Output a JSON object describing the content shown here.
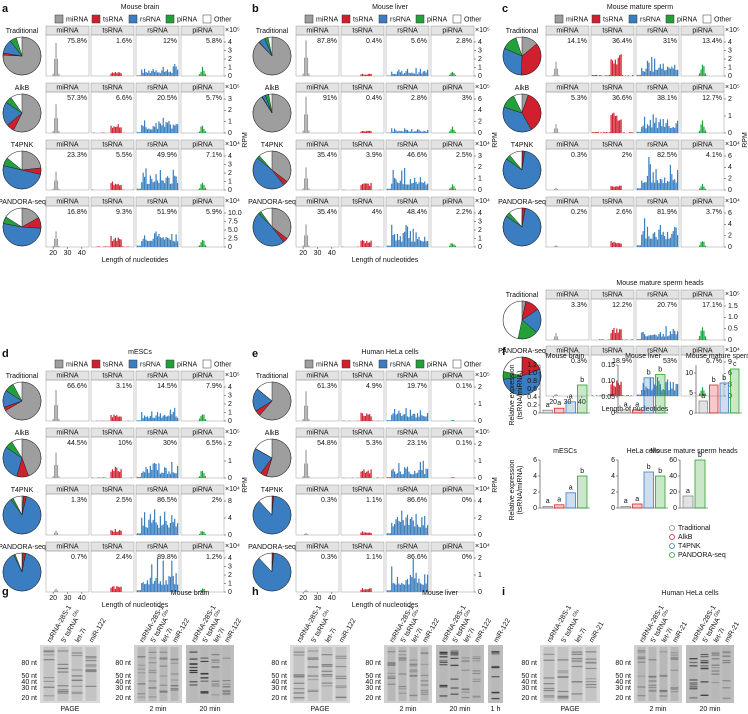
{
  "legend": [
    "miRNA",
    "tsRNA",
    "rsRNA",
    "piRNA",
    "Other"
  ],
  "x_ticks": [
    "20",
    "30",
    "40"
  ],
  "x_label": "Length of nucleotides",
  "y_label": "RPM",
  "panels": [
    {
      "letter": "a",
      "title": "Mouse brain",
      "rows": [
        {
          "label": "Traditional",
          "pcts": [
            "75.8%",
            "1.6%",
            "12%",
            "5.8%"
          ],
          "scale": "×10⁵",
          "ticks": [
            "0",
            "1",
            "2",
            "3",
            "4"
          ]
        },
        {
          "label": "AlkB",
          "pcts": [
            "57.3%",
            "6.6%",
            "20.5%",
            "5.7%"
          ],
          "scale": "×10⁵",
          "ticks": [
            "0",
            "1",
            "2",
            "3"
          ]
        },
        {
          "label": "T4PNK",
          "pcts": [
            "23.3%",
            "5.5%",
            "49.9%",
            "7.1%"
          ],
          "scale": "×10⁴",
          "ticks": [
            "0",
            "1",
            "2",
            "3",
            "4"
          ]
        },
        {
          "label": "PANDORA-seq",
          "pcts": [
            "16.8%",
            "9.3%",
            "51.9%",
            "5.9%"
          ],
          "scale": "×10⁴",
          "ticks": [
            "0",
            "2.5",
            "5.0",
            "7.5",
            "10.0"
          ]
        }
      ]
    },
    {
      "letter": "b",
      "title": "Mouse liver",
      "rows": [
        {
          "label": "Traditional",
          "pcts": [
            "87.8%",
            "0.4%",
            "5.6%",
            "2.8%"
          ],
          "scale": "×10⁵",
          "ticks": [
            "0",
            "1",
            "2",
            "3",
            "4"
          ]
        },
        {
          "label": "AlkB",
          "pcts": [
            "91%",
            "0.4%",
            "2.8%",
            "3%"
          ],
          "scale": "×10⁵",
          "ticks": [
            "0",
            "2",
            "4",
            "6"
          ]
        },
        {
          "label": "T4PNK",
          "pcts": [
            "35.4%",
            "3.9%",
            "46.6%",
            "2.5%"
          ],
          "scale": "×10⁴",
          "ticks": [
            "0",
            "1",
            "2",
            "3"
          ]
        },
        {
          "label": "PANDORA-seq",
          "pcts": [
            "35.4%",
            "4%",
            "48.4%",
            "2.2%"
          ],
          "scale": "×10⁴",
          "ticks": [
            "0",
            "1",
            "2",
            "3",
            "4"
          ]
        }
      ]
    },
    {
      "letter": "c",
      "title": "Mouse mature sperm",
      "subtitle": "Mouse mature sperm heads",
      "rows": [
        {
          "label": "Traditional",
          "pcts": [
            "14.1%",
            "36.4%",
            "31%",
            "13.4%"
          ],
          "scale": "×10⁵",
          "ticks": [
            "0",
            "1",
            "2",
            "3",
            "4"
          ]
        },
        {
          "label": "AlkB",
          "pcts": [
            "5.3%",
            "36.6%",
            "38.1%",
            "12.7%"
          ],
          "scale": "×10⁵",
          "ticks": [
            "0",
            "1",
            "2"
          ]
        },
        {
          "label": "T4PNK",
          "pcts": [
            "0.3%",
            "2%",
            "82.5%",
            "4.1%"
          ],
          "scale": "×10⁴",
          "ticks": [
            "0",
            "2",
            "4",
            "6"
          ]
        },
        {
          "label": "PANDORA-seq",
          "pcts": [
            "0.2%",
            "2.6%",
            "81.9%",
            "3.7%"
          ],
          "scale": "×10⁴",
          "ticks": [
            "0",
            "2",
            "4",
            "6"
          ]
        },
        {
          "label": "Traditional",
          "pcts": [
            "3.3%",
            "12.2%",
            "20.7%",
            "17.1%"
          ],
          "scale": "×10⁵",
          "ticks": [
            "0",
            "0.5",
            "1.0",
            "1.5"
          ]
        },
        {
          "label": "PANDORA-seq",
          "pcts": [
            "0.3%",
            "18.9%",
            "53%",
            "6.7%"
          ],
          "scale": "×10⁴",
          "ticks": [
            "0",
            "3",
            "6",
            "9"
          ]
        }
      ]
    },
    {
      "letter": "d",
      "title": "mESCs",
      "rows": [
        {
          "label": "Traditional",
          "pcts": [
            "66.6%",
            "3.1%",
            "14.5%",
            "7.9%"
          ],
          "scale": "×10⁵",
          "ticks": [
            "0",
            "1",
            "2",
            "3",
            "4"
          ]
        },
        {
          "label": "AlkB",
          "pcts": [
            "44.5%",
            "10%",
            "30%",
            "6.5%"
          ],
          "scale": "×10⁵",
          "ticks": [
            "0",
            "1",
            "2"
          ]
        },
        {
          "label": "T4PNK",
          "pcts": [
            "1.3%",
            "2.5%",
            "86.5%",
            "2%"
          ],
          "scale": "×10⁴",
          "ticks": [
            "0",
            "4",
            "8"
          ]
        },
        {
          "label": "PANDORA-seq",
          "pcts": [
            "0.7%",
            "2.4%",
            "89.8%",
            "1.2%"
          ],
          "scale": "×10⁴",
          "ticks": [
            "0",
            "1",
            "2",
            "3",
            "4"
          ]
        }
      ]
    },
    {
      "letter": "e",
      "title": "Human HeLa cells",
      "rows": [
        {
          "label": "Traditional",
          "pcts": [
            "61.3%",
            "4.9%",
            "19.7%",
            "0.1%"
          ],
          "scale": "×10⁵",
          "ticks": [
            "0",
            "1",
            "2"
          ]
        },
        {
          "label": "AlkB",
          "pcts": [
            "54.8%",
            "5.3%",
            "23.1%",
            "0.1%"
          ],
          "scale": "×10⁵",
          "ticks": [
            "0",
            "1",
            "2"
          ]
        },
        {
          "label": "T4PNK",
          "pcts": [
            "0.3%",
            "1.1%",
            "86.6%",
            "0%"
          ],
          "scale": "×10⁴",
          "ticks": [
            "0",
            "2",
            "4"
          ]
        },
        {
          "label": "PANDORA-seq",
          "pcts": [
            "0.3%",
            "1.1%",
            "86.6%",
            "0%"
          ],
          "scale": "×10⁴",
          "ticks": [
            "0",
            "1",
            "2"
          ]
        }
      ]
    }
  ],
  "panel_f": {
    "letter": "f",
    "y_label": [
      "Relative expression",
      "(tsRNA/miRNA)"
    ],
    "legend": [
      "Traditional",
      "AlkB",
      "T4PNK",
      "PANDORA-seq"
    ],
    "colors": [
      "#8c8c8c",
      "#d62728",
      "#3a7dc0",
      "#2ca02c"
    ],
    "charts": [
      {
        "title": "Mouse brain",
        "ylim": [
          0,
          1.2
        ],
        "yticks": [
          0,
          0.2,
          0.4,
          0.6,
          0.8,
          {
            "value": 1,
            "label": "1.0"
          },
          1.2
        ],
        "values": [
          0.07,
          0.12,
          0.28,
          0.7
        ],
        "letters": [
          "a",
          "a",
          "a",
          "b"
        ]
      },
      {
        "title": "Mouse liver",
        "ylim": [
          0,
          0.15
        ],
        "yticks": [
          0,
          0.05,
          {
            "value": 0.1,
            "label": "0.10"
          },
          0.15
        ],
        "values": [
          0.01,
          0.01,
          0.11,
          0.12
        ],
        "letters": [
          "a",
          "a",
          "b",
          "b"
        ]
      },
      {
        "title": "Mouse mature sperm",
        "ylim": [
          0,
          12
        ],
        "yticks": [
          0,
          5,
          10
        ],
        "values": [
          3,
          7,
          7.5,
          11
        ],
        "letters": [
          "a",
          "b",
          "b",
          "c"
        ]
      },
      {
        "title": "mESCs",
        "ylim": [
          0,
          6
        ],
        "yticks": [
          0,
          2,
          4,
          6
        ],
        "values": [
          0.2,
          0.4,
          1.9,
          4
        ],
        "letters": [
          "a",
          "a",
          "a",
          "b"
        ]
      },
      {
        "title": "HeLa cells",
        "ylim": [
          0,
          6
        ],
        "yticks": [
          0,
          2,
          4,
          6
        ],
        "values": [
          0.2,
          0.5,
          4.5,
          4
        ],
        "letters": [
          "a",
          "a",
          "b",
          "b"
        ]
      },
      {
        "title": "Mouse mature sperm heads",
        "ylim": [
          0,
          60
        ],
        "yticks": [
          0,
          20,
          40,
          60
        ],
        "values": [
          15,
          null,
          null,
          60
        ],
        "letters": [
          "a",
          null,
          null,
          "b"
        ]
      }
    ]
  },
  "gels": [
    {
      "letter": "g",
      "title": "Mouse brain",
      "markers": [
        "80 nt",
        "50 nt",
        "40 nt",
        "30 nt",
        "20 nt"
      ],
      "blots": [
        {
          "caption": "PAGE",
          "lanes": [
            "rsRNA-28S-1",
            [
              "5′ tsRNA",
              "Glu"
            ],
            "let-7i",
            "miR-122"
          ]
        },
        {
          "caption": "2 min",
          "lanes": [
            "rsRNA-28S-1",
            [
              "5′ tsRNA",
              "Glu"
            ],
            "let-7i",
            "miR-122"
          ]
        },
        {
          "caption": "20 min",
          "lanes": [
            "rsRNA-28S-1",
            [
              "5′ tsRNA",
              "Glu"
            ],
            "let-7i",
            "miR-122"
          ]
        }
      ]
    },
    {
      "letter": "h",
      "title": "Mouse liver",
      "markers": [
        "80 nt",
        "50 nt",
        "40 nt",
        "30 nt",
        "20 nt"
      ],
      "blots": [
        {
          "caption": "PAGE",
          "lanes": [
            "rsRNA-28S-1",
            [
              "5′ tsRNA",
              "Glu"
            ],
            "let-7i",
            "miR-122"
          ]
        },
        {
          "caption": "2 min",
          "lanes": [
            "rsRNA-28S-1",
            [
              "5′ tsRNA",
              "Glu"
            ],
            "let-7i",
            "miR-122"
          ]
        },
        {
          "caption": "20 min",
          "lanes": [
            "rsRNA-28S-1",
            [
              "5′ tsRNA",
              "Glu"
            ],
            "let-7i",
            "miR-122"
          ]
        },
        {
          "caption": "1 h",
          "lanes": [
            "miR-122"
          ]
        }
      ]
    },
    {
      "letter": "i",
      "title": "Human HeLa cells",
      "markers": [
        "80 nt",
        "50 nt",
        "40 nt",
        "30 nt",
        "20 nt"
      ],
      "blots": [
        {
          "caption": "PAGE",
          "lanes": [
            "rsRNA-28S-1",
            [
              "5′ tsRNA",
              "Glu"
            ],
            "let-7i",
            "miR-21"
          ]
        },
        {
          "caption": "2 min",
          "lanes": [
            "rsRNA-28S-1",
            [
              "5′ tsRNA",
              "Glu"
            ],
            "let-7i",
            "miR-21"
          ]
        },
        {
          "caption": "20 min",
          "lanes": [
            "rsRNA-28S-1",
            [
              "5′ tsRNA",
              "Glu"
            ],
            "let-7i",
            "miR-21"
          ]
        }
      ]
    }
  ]
}
